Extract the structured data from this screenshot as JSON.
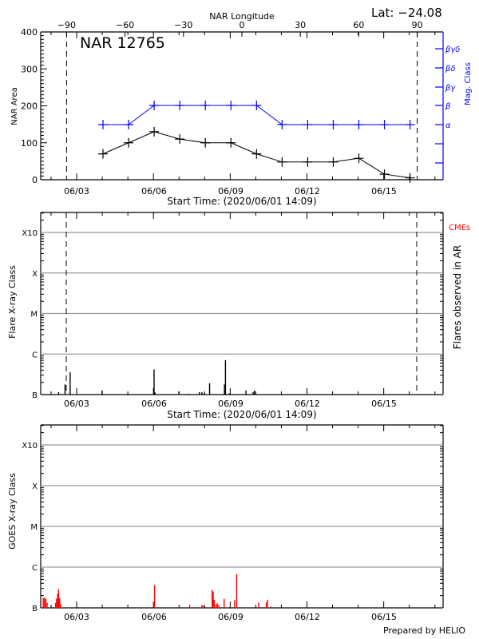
{
  "header": {
    "lat_label": "Lat: −24.08",
    "footer": "Prepared by HELIO"
  },
  "colors": {
    "black": "#000000",
    "blue": "#0000ff",
    "red": "#ff0000",
    "grid": "#9a9a9a"
  },
  "chart_data": [
    {
      "type": "line",
      "title": "NAR 12765",
      "top_axis_label": "NAR Longitude",
      "top_ticks": [
        -90,
        -60,
        -30,
        0,
        30,
        60,
        90
      ],
      "xlabel": "Start Time: (2020/06/01 14:09)",
      "ylabel": "NAR Area",
      "y2label": "Mag. Class",
      "ylim": [
        0,
        400
      ],
      "yticks": [
        0,
        100,
        200,
        300,
        400
      ],
      "xticks": [
        "06/03",
        "06/06",
        "06/09",
        "06/12",
        "06/15"
      ],
      "y2ticks": [
        "α",
        "β",
        "βγ",
        "βδ",
        "βγδ"
      ],
      "limb_lines_longitude": [
        -90,
        90
      ],
      "x": [
        "06/04",
        "06/05",
        "06/06",
        "06/07",
        "06/08",
        "06/09",
        "06/10",
        "06/11",
        "06/12",
        "06/13",
        "06/14",
        "06/15",
        "06/16"
      ],
      "series": [
        {
          "name": "NAR Area",
          "color": "#000000",
          "values": [
            70,
            100,
            130,
            110,
            100,
            100,
            70,
            48,
            48,
            48,
            58,
            15,
            5
          ]
        },
        {
          "name": "Mag. Class",
          "color": "#0000ff",
          "values": [
            "α",
            "α",
            "β",
            "β",
            "β",
            "β",
            "β",
            "α",
            "α",
            "α",
            "α",
            "α",
            "α"
          ]
        }
      ]
    },
    {
      "type": "bar",
      "xlabel": "Start Time: (2020/06/01 14:09)",
      "ylabel": "Flare X-ray Class",
      "y2label": "Flares observed in AR",
      "legend": [
        {
          "label": "CMEs",
          "color": "#ff0000"
        }
      ],
      "yticks": [
        "B",
        "C",
        "M",
        "X",
        "X10"
      ],
      "xticks": [
        "06/03",
        "06/06",
        "06/09",
        "06/12",
        "06/15"
      ],
      "flares_day_offset_vs_class_frac": [
        {
          "day": 0.7,
          "h": 0.06
        },
        {
          "day": 0.95,
          "h": 0.25
        },
        {
          "day": 1.15,
          "h": 0.55
        },
        {
          "day": 2.4,
          "h": 0.1
        },
        {
          "day": 3.4,
          "h": 0.02
        },
        {
          "day": 4.43,
          "h": 0.62
        },
        {
          "day": 4.47,
          "h": 0.05
        },
        {
          "day": 5.4,
          "h": 0.08
        },
        {
          "day": 5.8,
          "h": 0.02
        },
        {
          "day": 6.2,
          "h": 0.06
        },
        {
          "day": 6.3,
          "h": 0.06
        },
        {
          "day": 6.38,
          "h": 0.03
        },
        {
          "day": 6.6,
          "h": 0.28
        },
        {
          "day": 7.18,
          "h": 0.25
        },
        {
          "day": 7.22,
          "h": 0.85
        },
        {
          "day": 7.37,
          "h": 0.03
        },
        {
          "day": 8.02,
          "h": 0.1
        },
        {
          "day": 8.3,
          "h": 0.06
        },
        {
          "day": 8.35,
          "h": 0.1
        }
      ]
    },
    {
      "type": "bar",
      "ylabel": "GOES X-ray Class",
      "yticks": [
        "B",
        "C",
        "M",
        "X",
        "X10"
      ],
      "xticks": [
        "06/03",
        "06/06",
        "06/09",
        "06/12",
        "06/15"
      ],
      "goes_spikes": [
        {
          "day": 0.1,
          "h": 0.24
        },
        {
          "day": 0.15,
          "h": 0.26
        },
        {
          "day": 0.2,
          "h": 0.22
        },
        {
          "day": 0.25,
          "h": 0.12
        },
        {
          "day": 0.58,
          "h": 0.12
        },
        {
          "day": 0.62,
          "h": 0.22
        },
        {
          "day": 0.66,
          "h": 0.35
        },
        {
          "day": 0.7,
          "h": 0.46
        },
        {
          "day": 0.74,
          "h": 0.24
        },
        {
          "day": 0.78,
          "h": 0.1
        },
        {
          "day": 4.45,
          "h": 0.56
        },
        {
          "day": 5.82,
          "h": 0.07
        },
        {
          "day": 6.3,
          "h": 0.07
        },
        {
          "day": 6.35,
          "h": 0.05
        },
        {
          "day": 6.7,
          "h": 0.44
        },
        {
          "day": 6.74,
          "h": 0.4
        },
        {
          "day": 6.78,
          "h": 0.2
        },
        {
          "day": 6.85,
          "h": 0.09
        },
        {
          "day": 6.9,
          "h": 0.11
        },
        {
          "day": 6.96,
          "h": 0.07
        },
        {
          "day": 7.17,
          "h": 0.22
        },
        {
          "day": 7.58,
          "h": 0.19
        },
        {
          "day": 7.66,
          "h": 0.83
        },
        {
          "day": 8.52,
          "h": 0.13
        },
        {
          "day": 8.82,
          "h": 0.13
        },
        {
          "day": 8.86,
          "h": 0.2
        },
        {
          "day": 9.0,
          "h": 0.03
        }
      ]
    }
  ]
}
